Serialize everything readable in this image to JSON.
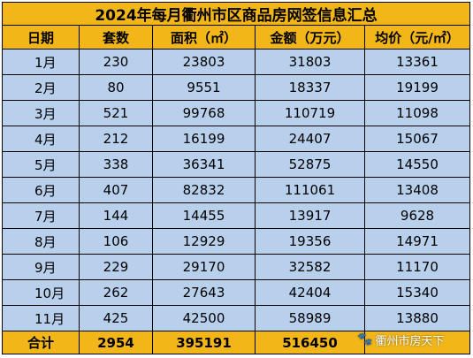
{
  "title": "2024年每月衢州市区商品房网签信息汇总",
  "headers": [
    "日期",
    "套数",
    "面积（㎡）",
    "金额（万元）",
    "均价（元/㎡）"
  ],
  "rows": [
    [
      "1月",
      "230",
      "23803",
      "31803",
      "13361"
    ],
    [
      "2月",
      "80",
      "9551",
      "18337",
      "19199"
    ],
    [
      "3月",
      "521",
      "99768",
      "110719",
      "11098"
    ],
    [
      "4月",
      "212",
      "16199",
      "24407",
      "15067"
    ],
    [
      "5月",
      "338",
      "36341",
      "52875",
      "14550"
    ],
    [
      "6月",
      "407",
      "82832",
      "111061",
      "13408"
    ],
    [
      "7月",
      "144",
      "14455",
      "13917",
      "9628"
    ],
    [
      "8月",
      "106",
      "12929",
      "19356",
      "14971"
    ],
    [
      "9月",
      "229",
      "29170",
      "32582",
      "11170"
    ],
    [
      "10月",
      "262",
      "27643",
      "42404",
      "15340"
    ],
    [
      "11月",
      "425",
      "42500",
      "58989",
      "13880"
    ]
  ],
  "total": [
    "合计",
    "2954",
    "395191",
    "516450",
    ""
  ],
  "watermark": {
    "icon": "paw-icon",
    "text": "衢州市房天下"
  },
  "colors": {
    "header_bg": "#f2b618",
    "body_bg": "#b8d0ec",
    "border": "#000000"
  }
}
